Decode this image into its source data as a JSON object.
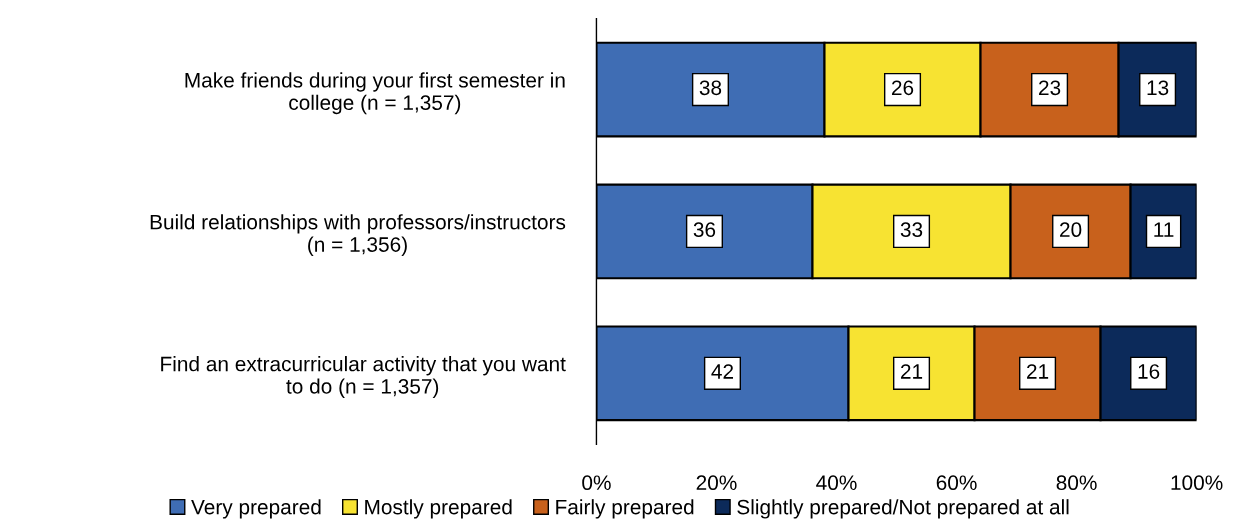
{
  "chart_data": {
    "type": "bar",
    "orientation": "horizontal",
    "stacked": true,
    "categories": [
      "Make friends during your first semester in college (n = 1,357)",
      "Build relationships with professors/instructors (n = 1,356)",
      "Find an extracurricular activity that you want to do (n = 1,357)"
    ],
    "series": [
      {
        "name": "Very prepared",
        "color": "#3f6db4",
        "values": [
          38,
          36,
          42
        ]
      },
      {
        "name": "Mostly prepared",
        "color": "#f7e332",
        "values": [
          26,
          33,
          21
        ]
      },
      {
        "name": "Fairly prepared",
        "color": "#c8611c",
        "values": [
          23,
          20,
          21
        ]
      },
      {
        "name": "Slightly prepared/Not prepared at all",
        "color": "#0c2a5a",
        "values": [
          13,
          11,
          16
        ]
      }
    ],
    "xlim": [
      0,
      100
    ],
    "xticks": [
      {
        "value": 0,
        "label": "0%"
      },
      {
        "value": 20,
        "label": "20%"
      },
      {
        "value": 40,
        "label": "40%"
      },
      {
        "value": 60,
        "label": "60%"
      },
      {
        "value": 80,
        "label": "80%"
      },
      {
        "value": 100,
        "label": "100%"
      }
    ],
    "data_labels": true,
    "grid": false,
    "legend": "bottom"
  }
}
